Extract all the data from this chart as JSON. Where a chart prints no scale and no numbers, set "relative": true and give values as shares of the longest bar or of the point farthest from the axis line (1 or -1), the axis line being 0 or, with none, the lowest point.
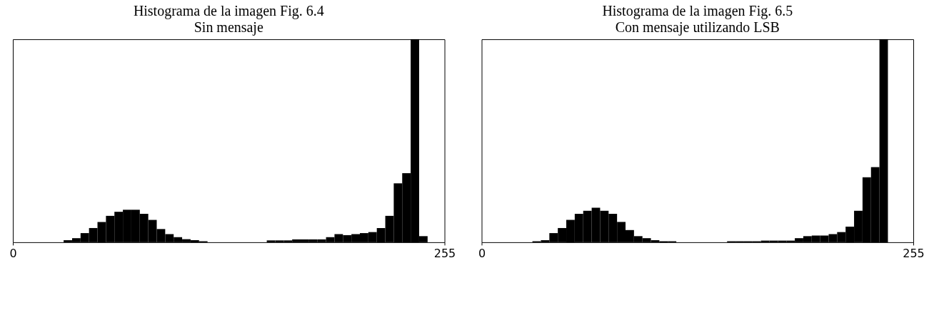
{
  "chart_data": [
    {
      "type": "bar",
      "title": "Histograma de la imagen  Fig. 6.4",
      "subtitle": "Sin mensaje",
      "relative": true,
      "xlim": [
        0,
        255
      ],
      "xticks": [
        0,
        255
      ],
      "grid": false,
      "color": "#000000",
      "x": [
        2.5,
        7.5,
        12.5,
        17.5,
        22.5,
        27.5,
        32.5,
        37.5,
        42.5,
        47.5,
        52.5,
        57.5,
        62.5,
        67.5,
        72.5,
        77.5,
        82.5,
        87.5,
        92.5,
        97.5,
        102.5,
        107.5,
        112.5,
        117.5,
        122.5,
        127.5,
        132.5,
        137.5,
        142.5,
        147.5,
        152.5,
        157.5,
        162.5,
        167.5,
        172.5,
        177.5,
        182.5,
        187.5,
        192.5,
        197.5,
        202.5,
        207.5,
        212.5,
        217.5,
        222.5,
        227.5,
        232.5,
        237.5,
        242.5,
        247.5,
        252.5
      ],
      "values": [
        0,
        0,
        0,
        0,
        0,
        0,
        0.01,
        0.02,
        0.045,
        0.07,
        0.1,
        0.13,
        0.15,
        0.16,
        0.16,
        0.14,
        0.11,
        0.065,
        0.04,
        0.025,
        0.015,
        0.01,
        0.005,
        0,
        0,
        0,
        0,
        0,
        0,
        0,
        0.009,
        0.009,
        0.009,
        0.014,
        0.014,
        0.014,
        0.014,
        0.025,
        0.04,
        0.035,
        0.04,
        0.045,
        0.05,
        0.07,
        0.13,
        0.29,
        0.34,
        1,
        0.03,
        0,
        0
      ]
    },
    {
      "type": "bar",
      "title": "Histograma de la  imagen Fig. 6.5",
      "subtitle": "Con mensaje utilizando LSB",
      "relative": true,
      "xlim": [
        0,
        255
      ],
      "xticks": [
        0,
        255
      ],
      "grid": false,
      "color": "#000000",
      "x": [
        2.5,
        7.5,
        12.5,
        17.5,
        22.5,
        27.5,
        32.5,
        37.5,
        42.5,
        47.5,
        52.5,
        57.5,
        62.5,
        67.5,
        72.5,
        77.5,
        82.5,
        87.5,
        92.5,
        97.5,
        102.5,
        107.5,
        112.5,
        117.5,
        122.5,
        127.5,
        132.5,
        137.5,
        142.5,
        147.5,
        152.5,
        157.5,
        162.5,
        167.5,
        172.5,
        177.5,
        182.5,
        187.5,
        192.5,
        197.5,
        202.5,
        207.5,
        212.5,
        217.5,
        222.5,
        227.5,
        232.5,
        237.5,
        242.5,
        247.5,
        252.5
      ],
      "values": [
        0,
        0,
        0,
        0,
        0,
        0,
        0.005,
        0.01,
        0.045,
        0.07,
        0.11,
        0.14,
        0.155,
        0.17,
        0.155,
        0.14,
        0.1,
        0.06,
        0.03,
        0.02,
        0.01,
        0.005,
        0.005,
        0,
        0,
        0,
        0,
        0,
        0,
        0.005,
        0.005,
        0.005,
        0.005,
        0.008,
        0.008,
        0.008,
        0.008,
        0.02,
        0.03,
        0.033,
        0.033,
        0.04,
        0.05,
        0.077,
        0.155,
        0.32,
        0.37,
        1,
        0,
        0,
        0
      ]
    }
  ]
}
